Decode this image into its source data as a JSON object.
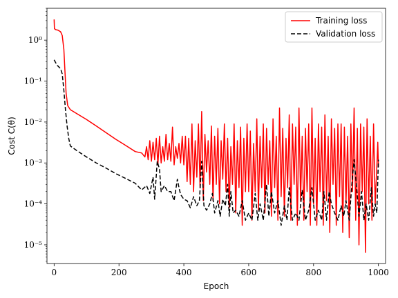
{
  "chart_data": {
    "type": "line",
    "xlabel": "Epoch",
    "ylabel": "Cost C(θ)",
    "xlim": [
      -22,
      1022
    ],
    "ylim": [
      3.5e-06,
      6
    ],
    "yscale": "log",
    "grid": false,
    "legend_placement": "top-right",
    "xticks": [
      0,
      200,
      400,
      600,
      800,
      1000
    ],
    "yticks": [
      {
        "value": 1e-05,
        "label": "10⁻⁵"
      },
      {
        "value": 0.0001,
        "label": "10⁻⁴"
      },
      {
        "value": 0.001,
        "label": "10⁻³"
      },
      {
        "value": 0.01,
        "label": "10⁻²"
      },
      {
        "value": 0.1,
        "label": "10⁻¹"
      },
      {
        "value": 1,
        "label": "10⁰"
      }
    ],
    "series": [
      {
        "name": "Training loss",
        "color": "#ff0000",
        "dash": "solid",
        "points": [
          [
            0,
            3.2
          ],
          [
            1,
            1.9
          ],
          [
            5,
            1.8
          ],
          [
            12,
            1.75
          ],
          [
            20,
            1.6
          ],
          [
            25,
            1.3
          ],
          [
            30,
            0.6
          ],
          [
            33,
            0.2
          ],
          [
            37,
            0.05
          ],
          [
            42,
            0.025
          ],
          [
            50,
            0.02
          ],
          [
            70,
            0.016
          ],
          [
            100,
            0.0115
          ],
          [
            130,
            0.008
          ],
          [
            160,
            0.0055
          ],
          [
            190,
            0.0038
          ],
          [
            220,
            0.0027
          ],
          [
            250,
            0.0019
          ],
          [
            270,
            0.00175
          ],
          [
            280,
            0.0014
          ],
          [
            285,
            0.0025
          ],
          [
            290,
            0.0012
          ],
          [
            295,
            0.0035
          ],
          [
            300,
            0.0011
          ],
          [
            305,
            0.0032
          ],
          [
            310,
            0.0012
          ],
          [
            315,
            0.004
          ],
          [
            320,
            0.0009
          ],
          [
            325,
            0.0045
          ],
          [
            330,
            0.001
          ],
          [
            335,
            0.0025
          ],
          [
            340,
            0.0011
          ],
          [
            345,
            0.005
          ],
          [
            350,
            0.0012
          ],
          [
            355,
            0.003
          ],
          [
            360,
            0.0011
          ],
          [
            365,
            0.0075
          ],
          [
            370,
            0.0009
          ],
          [
            375,
            0.0025
          ],
          [
            380,
            0.0013
          ],
          [
            385,
            0.003
          ],
          [
            390,
            0.001
          ],
          [
            395,
            0.0045
          ],
          [
            400,
            0.0009
          ],
          [
            405,
            0.0045
          ],
          [
            410,
            0.00035
          ],
          [
            415,
            0.004
          ],
          [
            420,
            0.0003
          ],
          [
            425,
            0.009
          ],
          [
            430,
            0.0002
          ],
          [
            435,
            0.0035
          ],
          [
            440,
            0.00045
          ],
          [
            445,
            0.009
          ],
          [
            450,
            0.00025
          ],
          [
            455,
            0.018
          ],
          [
            460,
            0.00012
          ],
          [
            465,
            0.005
          ],
          [
            470,
            0.0006
          ],
          [
            475,
            0.0035
          ],
          [
            480,
            0.0003
          ],
          [
            485,
            0.008
          ],
          [
            490,
            0.00012
          ],
          [
            495,
            0.0045
          ],
          [
            500,
            0.0003
          ],
          [
            505,
            0.007
          ],
          [
            510,
            0.0001
          ],
          [
            515,
            0.0035
          ],
          [
            520,
            0.0004
          ],
          [
            525,
            0.009
          ],
          [
            530,
            0.0002
          ],
          [
            535,
            0.004
          ],
          [
            540,
            8e-05
          ],
          [
            545,
            0.0025
          ],
          [
            550,
            0.0003
          ],
          [
            555,
            0.009
          ],
          [
            560,
            6e-05
          ],
          [
            565,
            0.0035
          ],
          [
            570,
            0.00025
          ],
          [
            575,
            0.0075
          ],
          [
            580,
            3e-05
          ],
          [
            585,
            0.004
          ],
          [
            590,
            0.0002
          ],
          [
            595,
            0.009
          ],
          [
            600,
            0.0002
          ],
          [
            605,
            0.006
          ],
          [
            610,
            4e-05
          ],
          [
            615,
            0.003
          ],
          [
            620,
            0.0002
          ],
          [
            625,
            0.012
          ],
          [
            630,
            7e-05
          ],
          [
            635,
            0.0045
          ],
          [
            640,
            0.00025
          ],
          [
            645,
            0.009
          ],
          [
            650,
            6e-05
          ],
          [
            655,
            0.007
          ],
          [
            660,
            0.0003
          ],
          [
            665,
            0.0035
          ],
          [
            670,
            5e-05
          ],
          [
            675,
            0.012
          ],
          [
            680,
            0.00025
          ],
          [
            685,
            0.0045
          ],
          [
            690,
            4e-05
          ],
          [
            695,
            0.022
          ],
          [
            700,
            0.00015
          ],
          [
            705,
            0.007
          ],
          [
            710,
            5e-05
          ],
          [
            715,
            0.004
          ],
          [
            720,
            0.00025
          ],
          [
            725,
            0.015
          ],
          [
            730,
            4e-05
          ],
          [
            735,
            0.009
          ],
          [
            740,
            0.0003
          ],
          [
            745,
            0.0075
          ],
          [
            750,
            3e-05
          ],
          [
            755,
            0.022
          ],
          [
            760,
            0.00012
          ],
          [
            765,
            0.0045
          ],
          [
            770,
            4e-05
          ],
          [
            775,
            0.007
          ],
          [
            780,
            0.0002
          ],
          [
            785,
            0.009
          ],
          [
            790,
            3e-05
          ],
          [
            795,
            0.022
          ],
          [
            800,
            0.0001
          ],
          [
            805,
            0.004
          ],
          [
            810,
            3e-05
          ],
          [
            815,
            0.009
          ],
          [
            820,
            0.0002
          ],
          [
            825,
            0.0075
          ],
          [
            830,
            3e-05
          ],
          [
            835,
            0.015
          ],
          [
            840,
            0.00012
          ],
          [
            845,
            0.0045
          ],
          [
            850,
            2e-05
          ],
          [
            855,
            0.012
          ],
          [
            860,
            0.0003
          ],
          [
            865,
            0.007
          ],
          [
            870,
            3e-05
          ],
          [
            875,
            0.009
          ],
          [
            880,
            0.00015
          ],
          [
            885,
            0.009
          ],
          [
            890,
            2e-05
          ],
          [
            895,
            0.0075
          ],
          [
            900,
            0.0001
          ],
          [
            905,
            0.0045
          ],
          [
            910,
            1.5e-05
          ],
          [
            915,
            0.009
          ],
          [
            920,
            0.0002
          ],
          [
            925,
            0.022
          ],
          [
            930,
            4e-05
          ],
          [
            935,
            0.007
          ],
          [
            940,
            1e-05
          ],
          [
            945,
            0.009
          ],
          [
            950,
            0.0002
          ],
          [
            955,
            0.0075
          ],
          [
            960,
            6.5e-06
          ],
          [
            965,
            0.012
          ],
          [
            970,
            0.0001
          ],
          [
            975,
            0.0045
          ],
          [
            980,
            4e-05
          ],
          [
            985,
            0.009
          ],
          [
            990,
            0.0001
          ],
          [
            995,
            0.0008
          ],
          [
            998,
            0.0032
          ],
          [
            1000,
            0.0008
          ]
        ]
      },
      {
        "name": "Validation loss",
        "color": "#000000",
        "dash": "dashed",
        "points": [
          [
            0,
            0.33
          ],
          [
            5,
            0.28
          ],
          [
            10,
            0.24
          ],
          [
            15,
            0.22
          ],
          [
            20,
            0.2
          ],
          [
            25,
            0.15
          ],
          [
            30,
            0.06
          ],
          [
            35,
            0.02
          ],
          [
            40,
            0.008
          ],
          [
            45,
            0.004
          ],
          [
            50,
            0.0026
          ],
          [
            70,
            0.002
          ],
          [
            100,
            0.0014
          ],
          [
            130,
            0.001
          ],
          [
            160,
            0.00075
          ],
          [
            190,
            0.00055
          ],
          [
            220,
            0.00042
          ],
          [
            250,
            0.00032
          ],
          [
            270,
            0.00022
          ],
          [
            285,
            0.00028
          ],
          [
            295,
            0.00018
          ],
          [
            305,
            0.00045
          ],
          [
            310,
            0.00013
          ],
          [
            318,
            0.0011
          ],
          [
            325,
            0.0007
          ],
          [
            330,
            0.0002
          ],
          [
            340,
            0.00028
          ],
          [
            350,
            0.0002
          ],
          [
            360,
            0.0002
          ],
          [
            370,
            0.00012
          ],
          [
            380,
            0.0004
          ],
          [
            385,
            0.00025
          ],
          [
            390,
            0.00017
          ],
          [
            400,
            0.00013
          ],
          [
            410,
            0.00012
          ],
          [
            420,
            8e-05
          ],
          [
            430,
            0.00015
          ],
          [
            440,
            9e-05
          ],
          [
            448,
            0.00012
          ],
          [
            455,
            0.0011
          ],
          [
            462,
            9e-05
          ],
          [
            470,
            7e-05
          ],
          [
            480,
            0.0001
          ],
          [
            488,
            0.00018
          ],
          [
            495,
            6e-05
          ],
          [
            505,
            0.00012
          ],
          [
            512,
            5e-05
          ],
          [
            520,
            0.00013
          ],
          [
            528,
            9e-05
          ],
          [
            535,
            0.0003
          ],
          [
            540,
            5e-05
          ],
          [
            545,
            0.0002
          ],
          [
            552,
            6e-05
          ],
          [
            560,
            7e-05
          ],
          [
            570,
            5e-05
          ],
          [
            580,
            0.00012
          ],
          [
            590,
            4e-05
          ],
          [
            600,
            6e-05
          ],
          [
            610,
            4e-05
          ],
          [
            620,
            0.00018
          ],
          [
            628,
            4e-05
          ],
          [
            635,
            0.0001
          ],
          [
            645,
            4e-05
          ],
          [
            655,
            0.0003
          ],
          [
            662,
            5e-05
          ],
          [
            670,
            0.0002
          ],
          [
            680,
            6e-05
          ],
          [
            690,
            0.00012
          ],
          [
            700,
            3e-05
          ],
          [
            710,
            9e-05
          ],
          [
            718,
            4e-05
          ],
          [
            725,
            0.00025
          ],
          [
            735,
            4e-05
          ],
          [
            745,
            6e-05
          ],
          [
            755,
            4e-05
          ],
          [
            765,
            0.00022
          ],
          [
            775,
            4e-05
          ],
          [
            785,
            7e-05
          ],
          [
            795,
            0.00025
          ],
          [
            805,
            4e-05
          ],
          [
            815,
            7e-05
          ],
          [
            825,
            4e-05
          ],
          [
            832,
            0.0002
          ],
          [
            840,
            4e-05
          ],
          [
            848,
            0.0002
          ],
          [
            855,
            0.0001
          ],
          [
            865,
            6e-05
          ],
          [
            875,
            4e-05
          ],
          [
            885,
            9e-05
          ],
          [
            893,
            5e-05
          ],
          [
            900,
            0.00012
          ],
          [
            910,
            4e-05
          ],
          [
            918,
            0.0003
          ],
          [
            925,
            0.0012
          ],
          [
            932,
            0.0003
          ],
          [
            940,
            5e-05
          ],
          [
            948,
            0.0002
          ],
          [
            955,
            4e-05
          ],
          [
            962,
            0.0001
          ],
          [
            970,
            4e-05
          ],
          [
            978,
            0.00025
          ],
          [
            985,
            5e-05
          ],
          [
            990,
            0.0001
          ],
          [
            995,
            6e-05
          ],
          [
            1000,
            0.0012
          ]
        ]
      }
    ]
  }
}
